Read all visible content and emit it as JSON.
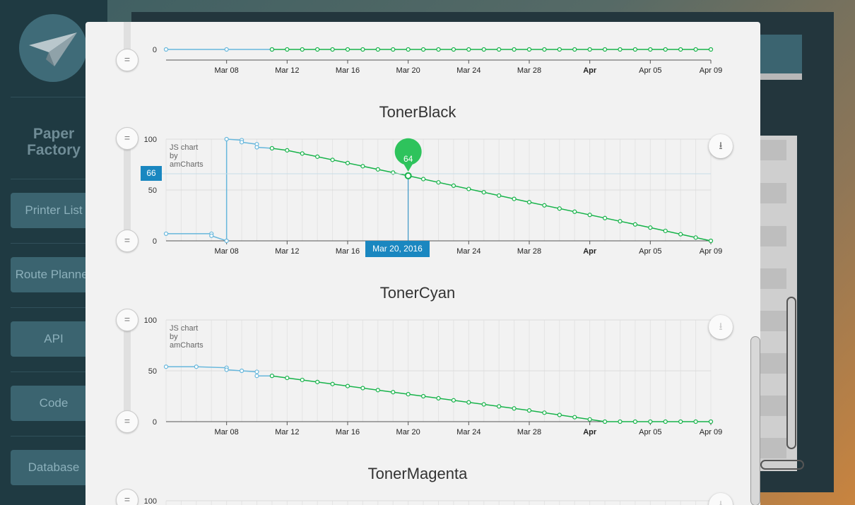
{
  "app": {
    "brand_line1": "Paper",
    "brand_line2": "Factory"
  },
  "nav": {
    "items": [
      {
        "label": "Printer List"
      },
      {
        "label": "Route Planner"
      },
      {
        "label": "API"
      },
      {
        "label": "Code"
      },
      {
        "label": "Database"
      }
    ]
  },
  "colors": {
    "history_line": "#67b7dc",
    "forecast_line": "#17b34a",
    "cursor": "#1a87c0",
    "balloon": "#2ec35c"
  },
  "x_ticks": [
    "Mar 08",
    "Mar 12",
    "Mar 16",
    "Mar 20",
    "Mar 24",
    "Mar 28",
    "Apr",
    "Apr 05",
    "Apr 09"
  ],
  "watermark": "JS chart by amCharts",
  "export_icon": "download-icon",
  "charts": {
    "top": {
      "y_ticks": [
        "0"
      ]
    },
    "black": {
      "title": "TonerBlack",
      "y_ticks": [
        "100",
        "50",
        "0"
      ],
      "cursor": {
        "value_label": "66",
        "date_label": "Mar 20, 2016",
        "balloon": "64"
      }
    },
    "cyan": {
      "title": "TonerCyan",
      "y_ticks": [
        "100",
        "50",
        "0"
      ]
    },
    "magenta": {
      "title": "TonerMagenta",
      "y_ticks": [
        "100"
      ]
    }
  },
  "chart_data": [
    {
      "type": "line",
      "title": "",
      "x_range": [
        "2016-03-04",
        "2016-04-09"
      ],
      "series": [
        {
          "values": [
            {
              "date": "2016-03-04",
              "y": 0
            },
            {
              "date": "2016-03-08",
              "y": 0
            },
            {
              "date": "2016-03-11",
              "y": 0
            }
          ]
        },
        {
          "values": [
            {
              "date": "2016-03-11",
              "y": 0
            },
            {
              "date": "2016-04-09",
              "y": 0
            }
          ]
        }
      ]
    },
    {
      "type": "line",
      "title": "TonerBlack",
      "ylim": [
        0,
        100
      ],
      "x_range": [
        "2016-03-04",
        "2016-04-09"
      ],
      "series": [
        {
          "values": [
            {
              "date": "2016-03-04",
              "y": 7
            },
            {
              "date": "2016-03-07",
              "y": 7
            },
            {
              "date": "2016-03-07",
              "y": 5
            },
            {
              "date": "2016-03-08",
              "y": 0
            },
            {
              "date": "2016-03-08",
              "y": 100
            },
            {
              "date": "2016-03-09",
              "y": 99
            },
            {
              "date": "2016-03-09",
              "y": 97
            },
            {
              "date": "2016-03-10",
              "y": 95
            },
            {
              "date": "2016-03-10",
              "y": 92
            },
            {
              "date": "2016-03-11",
              "y": 91
            }
          ]
        },
        {
          "values": [
            {
              "date": "2016-03-11",
              "y": 91
            },
            {
              "date": "2016-03-12",
              "y": 89
            },
            {
              "date": "2016-03-20",
              "y": 64
            },
            {
              "date": "2016-03-28",
              "y": 38
            },
            {
              "date": "2016-04-05",
              "y": 13
            },
            {
              "date": "2016-04-09",
              "y": 0
            }
          ]
        }
      ]
    },
    {
      "type": "line",
      "title": "TonerCyan",
      "ylim": [
        0,
        100
      ],
      "x_range": [
        "2016-03-04",
        "2016-04-09"
      ],
      "series": [
        {
          "values": [
            {
              "date": "2016-03-04",
              "y": 54
            },
            {
              "date": "2016-03-06",
              "y": 54
            },
            {
              "date": "2016-03-08",
              "y": 53
            },
            {
              "date": "2016-03-08",
              "y": 51
            },
            {
              "date": "2016-03-09",
              "y": 50
            },
            {
              "date": "2016-03-10",
              "y": 49
            },
            {
              "date": "2016-03-10",
              "y": 45
            },
            {
              "date": "2016-03-11",
              "y": 45
            }
          ]
        },
        {
          "values": [
            {
              "date": "2016-03-11",
              "y": 45
            },
            {
              "date": "2016-03-12",
              "y": 43
            },
            {
              "date": "2016-03-20",
              "y": 27
            },
            {
              "date": "2016-03-28",
              "y": 11
            },
            {
              "date": "2016-04-02",
              "y": 0
            },
            {
              "date": "2016-04-09",
              "y": 0
            }
          ]
        }
      ]
    },
    {
      "type": "line",
      "title": "TonerMagenta",
      "ylim": [
        0,
        100
      ],
      "series": []
    }
  ]
}
